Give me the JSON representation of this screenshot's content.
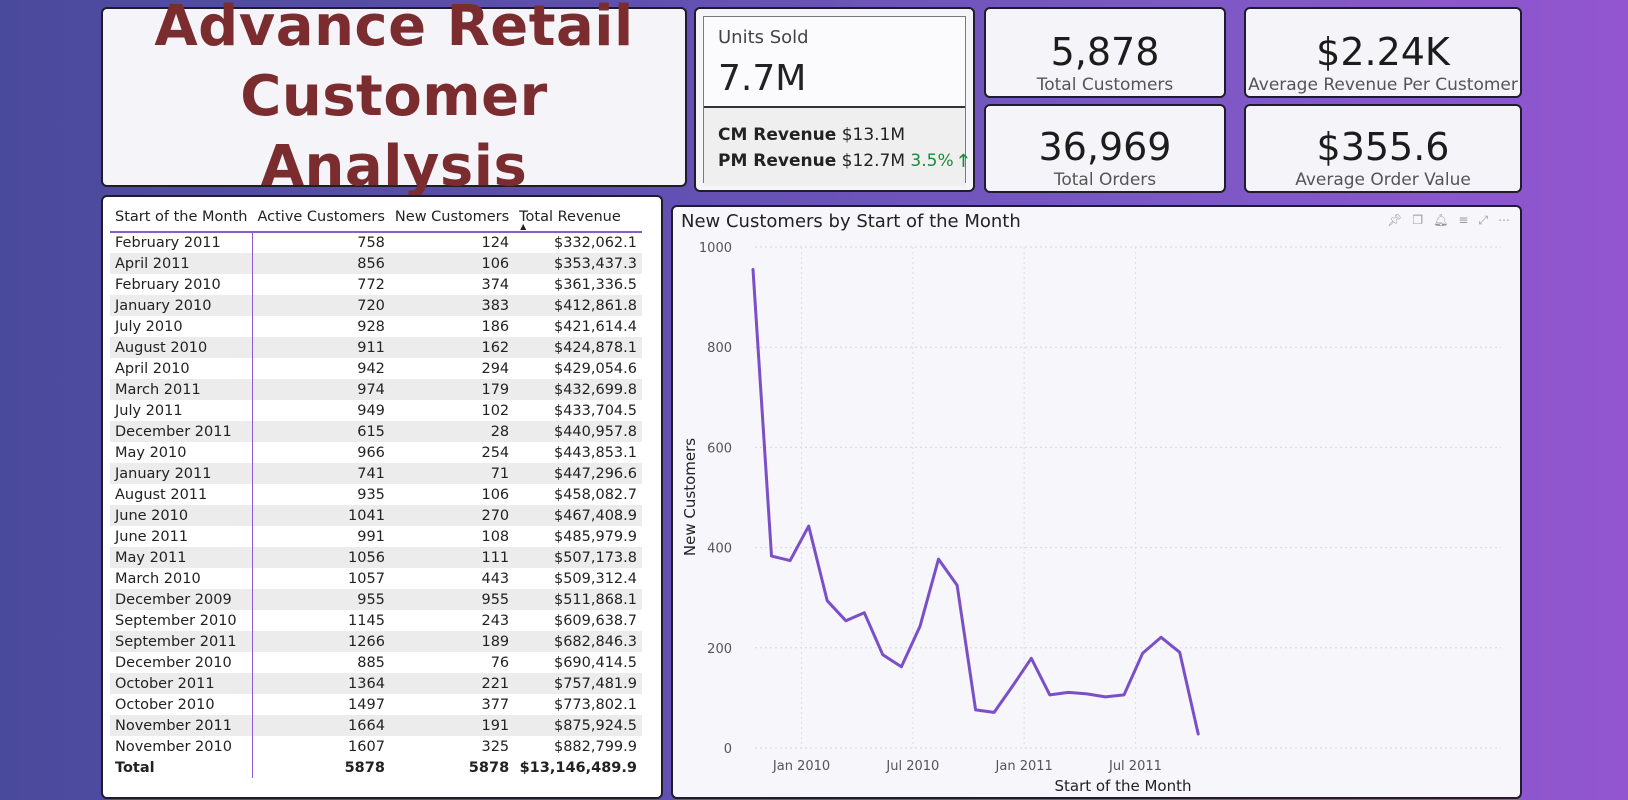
{
  "title": {
    "line1": "Advance Retail",
    "line2": "Customer Analysis"
  },
  "units_card": {
    "label": "Units Sold",
    "value": "7.7M",
    "cm_label": "CM Revenue",
    "cm_value": "$13.1M",
    "pm_label": "PM Revenue",
    "pm_value": "$12.7M",
    "pm_change": "3.5%",
    "pm_arrow": "🡑"
  },
  "kpis": {
    "total_customers": {
      "value": "5,878",
      "label": "Total Customers"
    },
    "avg_rev_per_customer": {
      "value": "$2.24K",
      "label": "Average Revenue Per Customer"
    },
    "total_orders": {
      "value": "36,969",
      "label": "Total Orders"
    },
    "avg_order_value": {
      "value": "$355.6",
      "label": "Average Order Value"
    }
  },
  "table": {
    "columns": [
      "Start of the Month",
      "Active Customers",
      "New Customers",
      "Total Revenue"
    ],
    "rows": [
      [
        "February 2011",
        "758",
        "124",
        "$332,062.1"
      ],
      [
        "April 2011",
        "856",
        "106",
        "$353,437.3"
      ],
      [
        "February 2010",
        "772",
        "374",
        "$361,336.5"
      ],
      [
        "January 2010",
        "720",
        "383",
        "$412,861.8"
      ],
      [
        "July 2010",
        "928",
        "186",
        "$421,614.4"
      ],
      [
        "August 2010",
        "911",
        "162",
        "$424,878.1"
      ],
      [
        "April 2010",
        "942",
        "294",
        "$429,054.6"
      ],
      [
        "March 2011",
        "974",
        "179",
        "$432,699.8"
      ],
      [
        "July 2011",
        "949",
        "102",
        "$433,704.5"
      ],
      [
        "December 2011",
        "615",
        "28",
        "$440,957.8"
      ],
      [
        "May 2010",
        "966",
        "254",
        "$443,853.1"
      ],
      [
        "January 2011",
        "741",
        "71",
        "$447,296.6"
      ],
      [
        "August 2011",
        "935",
        "106",
        "$458,082.7"
      ],
      [
        "June 2010",
        "1041",
        "270",
        "$467,408.9"
      ],
      [
        "June 2011",
        "991",
        "108",
        "$485,979.9"
      ],
      [
        "May 2011",
        "1056",
        "111",
        "$507,173.8"
      ],
      [
        "March 2010",
        "1057",
        "443",
        "$509,312.4"
      ],
      [
        "December 2009",
        "955",
        "955",
        "$511,868.1"
      ],
      [
        "September 2010",
        "1145",
        "243",
        "$609,638.7"
      ],
      [
        "September 2011",
        "1266",
        "189",
        "$682,846.3"
      ],
      [
        "December 2010",
        "885",
        "76",
        "$690,414.5"
      ],
      [
        "October 2011",
        "1364",
        "221",
        "$757,481.9"
      ],
      [
        "October 2010",
        "1497",
        "377",
        "$773,802.1"
      ],
      [
        "November 2011",
        "1664",
        "191",
        "$875,924.5"
      ],
      [
        "November 2010",
        "1607",
        "325",
        "$882,799.9"
      ]
    ],
    "total": [
      "Total",
      "5878",
      "5878",
      "$13,146,489.9"
    ]
  },
  "chart": {
    "title": "New Customers by Start of the Month",
    "icons": [
      "pin-icon",
      "copy-icon",
      "bell-icon",
      "filter-icon",
      "focus-mode-icon",
      "more-options-icon"
    ]
  },
  "chart_data": {
    "type": "line",
    "title": "New Customers by Start of the Month",
    "xlabel": "Start of the Month",
    "ylabel": "New Customers",
    "x": [
      "2009-12",
      "2010-01",
      "2010-02",
      "2010-03",
      "2010-04",
      "2010-05",
      "2010-06",
      "2010-07",
      "2010-08",
      "2010-09",
      "2010-10",
      "2010-11",
      "2010-12",
      "2011-01",
      "2011-02",
      "2011-03",
      "2011-04",
      "2011-05",
      "2011-06",
      "2011-07",
      "2011-08",
      "2011-09",
      "2011-10",
      "2011-11",
      "2011-12"
    ],
    "values": [
      955,
      383,
      374,
      443,
      294,
      254,
      270,
      186,
      162,
      243,
      377,
      325,
      76,
      71,
      124,
      179,
      106,
      111,
      108,
      102,
      106,
      189,
      221,
      191,
      28
    ],
    "x_ticks": [
      "Jan 2010",
      "Jul 2010",
      "Jan 2011",
      "Jul 2011"
    ],
    "y_ticks": [
      "0",
      "200",
      "400",
      "600",
      "800",
      "1000"
    ],
    "ylim": [
      0,
      1000
    ],
    "grid": true,
    "line_color": "#7b4fc8"
  }
}
